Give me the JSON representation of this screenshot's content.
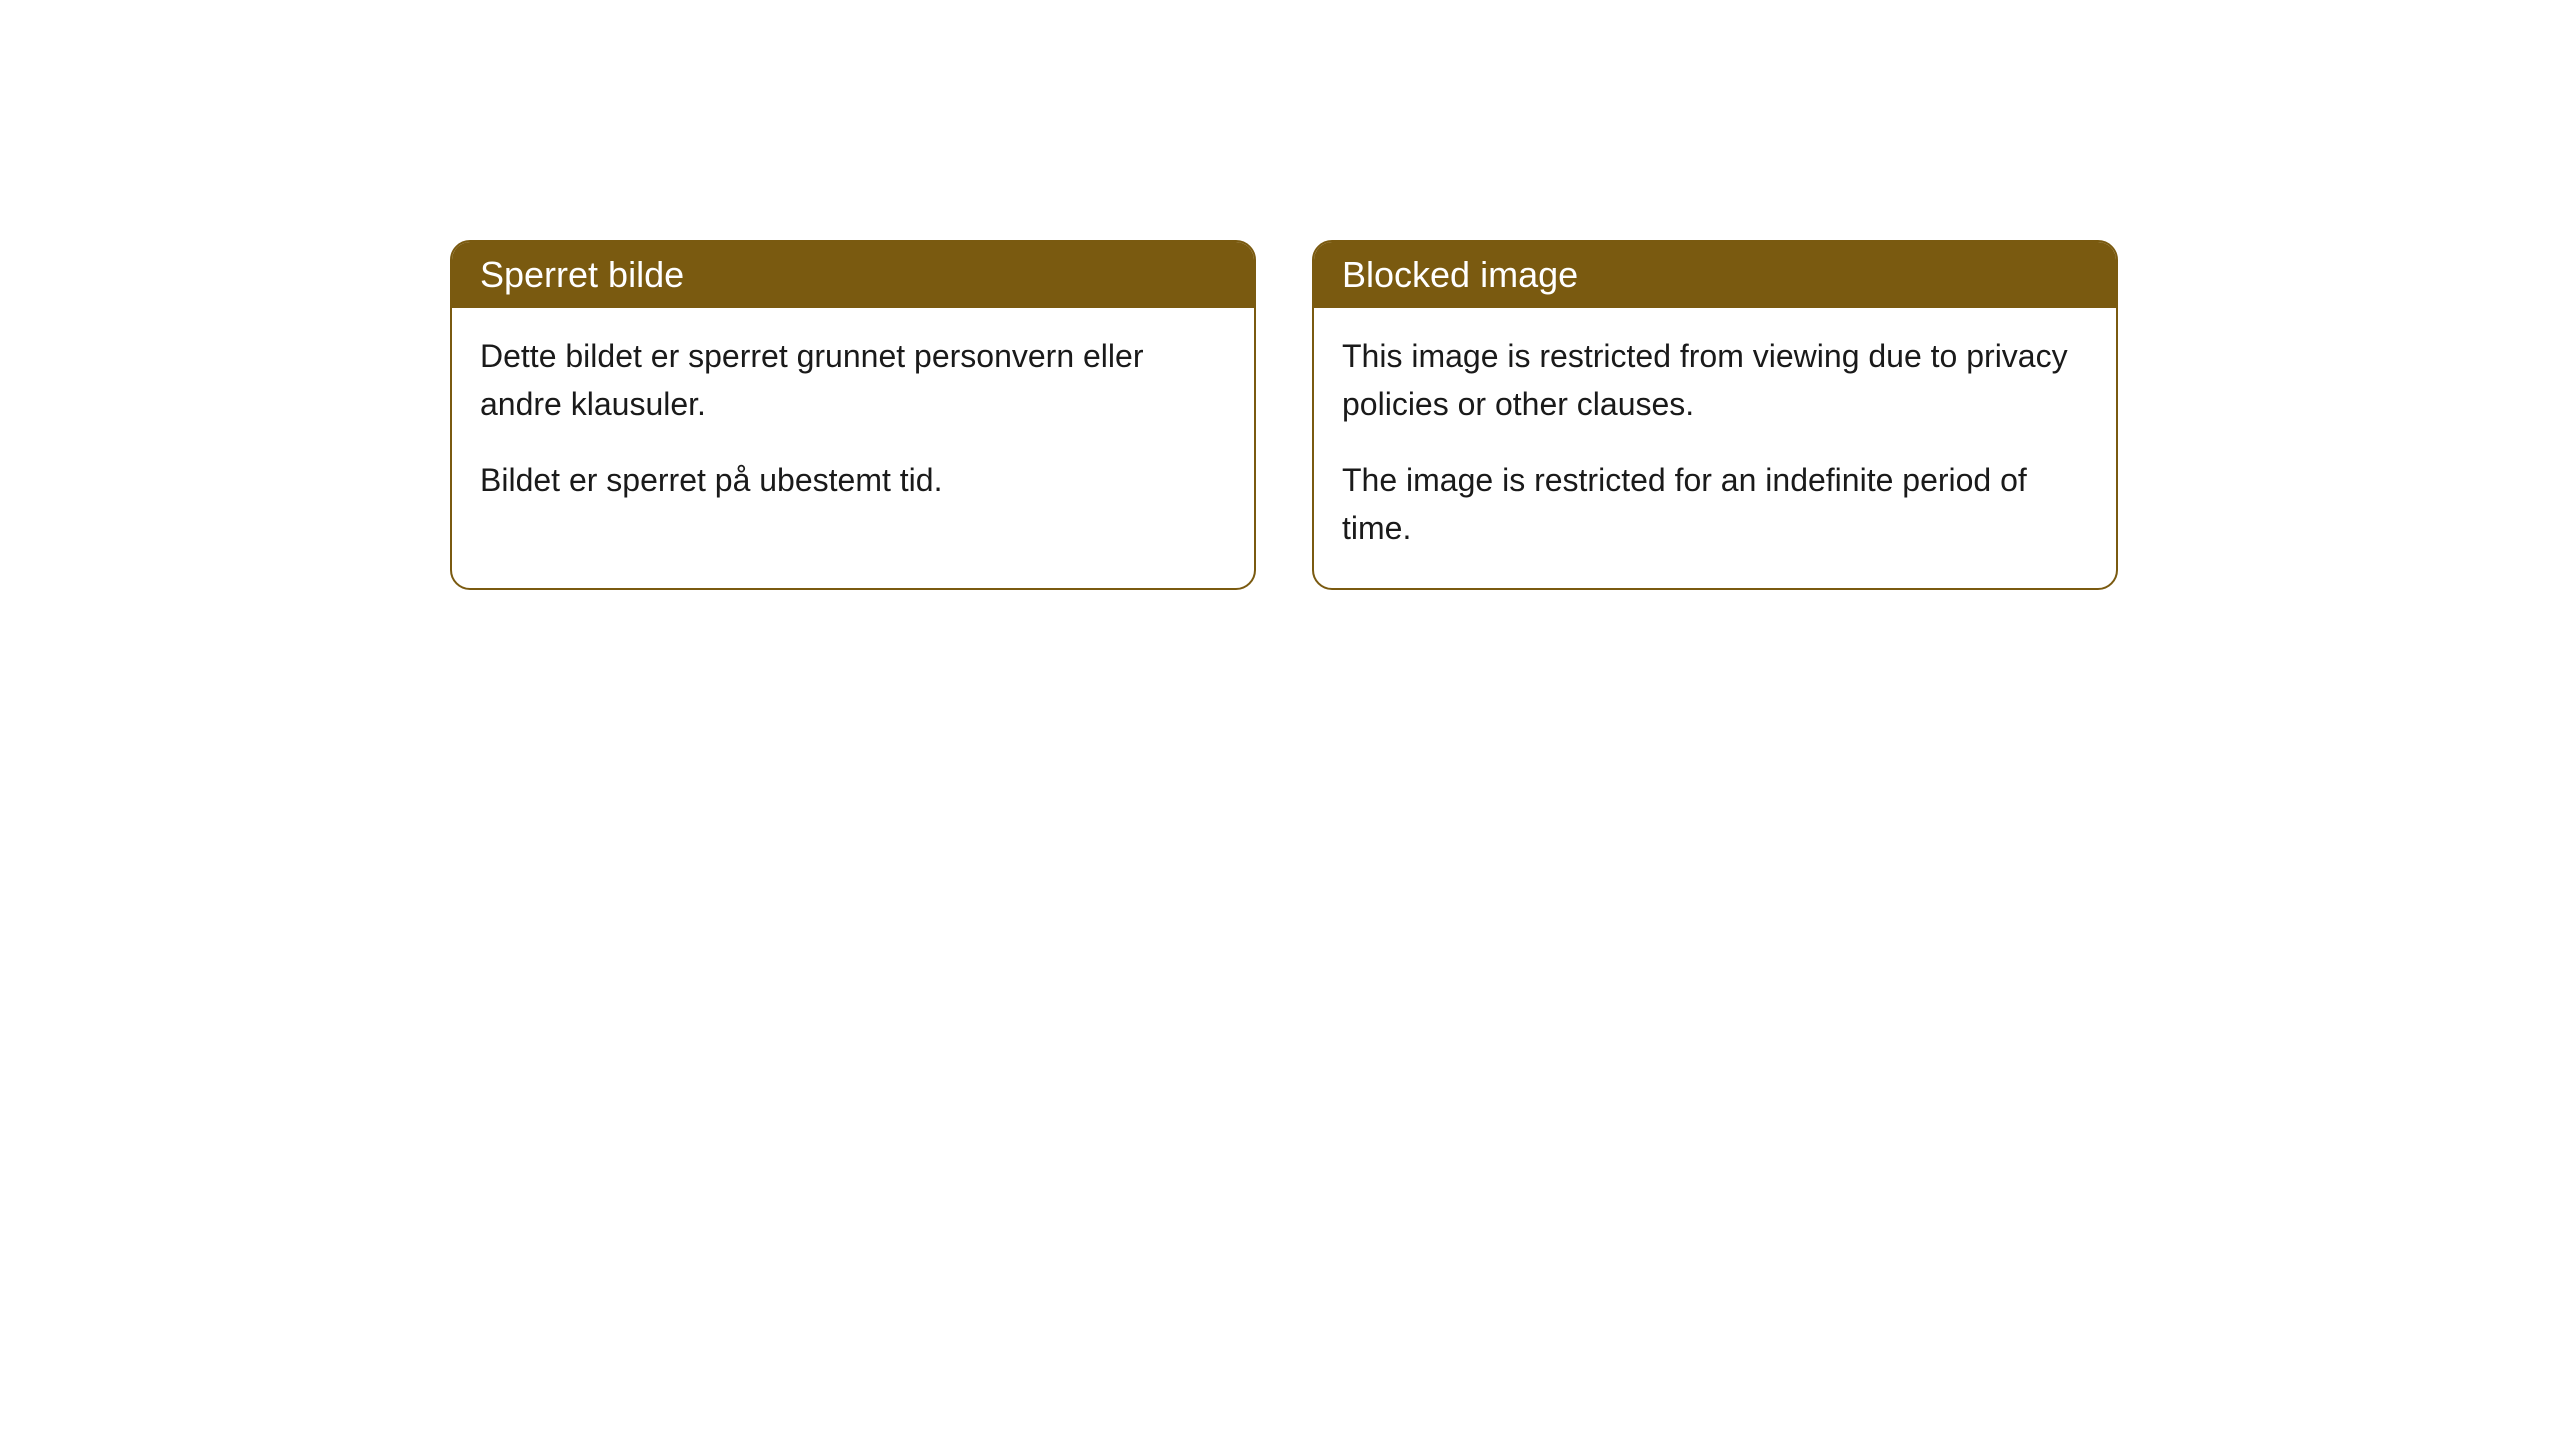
{
  "cards": [
    {
      "title": "Sperret bilde",
      "paragraph1": "Dette bildet er sperret grunnet personvern eller andre klausuler.",
      "paragraph2": "Bildet er sperret på ubestemt tid."
    },
    {
      "title": "Blocked image",
      "paragraph1": "This image is restricted from viewing due to privacy policies or other clauses.",
      "paragraph2": "The image is restricted for an indefinite period of time."
    }
  ],
  "styling": {
    "header_background": "#7a5a10",
    "header_text_color": "#ffffff",
    "border_color": "#7a5a10",
    "body_background": "#ffffff",
    "body_text_color": "#1a1a1a",
    "border_radius": 20,
    "title_fontsize": 36,
    "body_fontsize": 32
  }
}
